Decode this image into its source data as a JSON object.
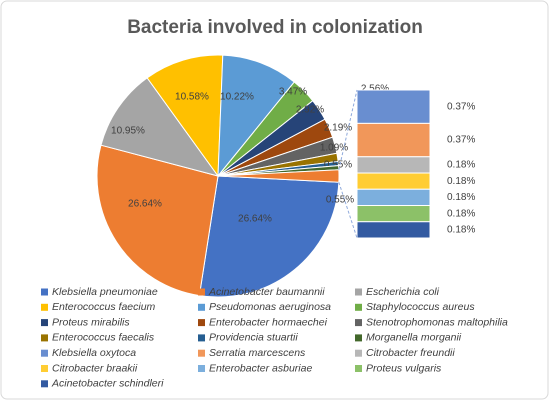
{
  "chart_data": {
    "type": "pie-of-bar",
    "title": "Bacteria involved in colonization",
    "secondary_count": 7,
    "categories": [
      "Klebsiella pneumoniae",
      "Acinetobacter baumannii",
      "Escherichia coli",
      "Enterococcus faecium",
      "Pseudomonas aeruginosa",
      "Staphylococcus aureus",
      "Proteus mirabilis",
      "Enterobacter hormaechei",
      "Stenotrophomonas maltophilia",
      "Enterococcus faecalis",
      "Providencia stuartii",
      "Morganella morganii",
      "Klebsiella oxytoca",
      "Serratia marcescens",
      "Citrobacter freundii",
      "Citrobacter braakii",
      "Enterobacter asburiae",
      "Proteus vulgaris",
      "Acinetobacter schindleri"
    ],
    "values": [
      26.64,
      26.64,
      10.95,
      10.58,
      10.22,
      3.47,
      2.92,
      2.56,
      2.19,
      1.09,
      0.55,
      0.55,
      0.37,
      0.37,
      0.18,
      0.18,
      0.18,
      0.18,
      0.18
    ],
    "value_labels": [
      "26.64%",
      "26.64%",
      "10.95%",
      "10.58%",
      "10.22%",
      "3.47%",
      "2.92%",
      "2.56%",
      "2.19%",
      "1.09%",
      "0.55%",
      "0.55%",
      "0.37%",
      "0.37%",
      "0.18%",
      "0.18%",
      "0.18%",
      "0.18%",
      "0.18%"
    ],
    "colors": [
      "#4472c4",
      "#ed7d31",
      "#a5a5a5",
      "#ffc000",
      "#5b9bd5",
      "#70ad47",
      "#264478",
      "#9e480e",
      "#636363",
      "#997300",
      "#255e91",
      "#43682b",
      "#698ed0",
      "#f1975a",
      "#b7b7b7",
      "#ffcd33",
      "#7cafdd",
      "#8cc168",
      "#335aa1"
    ]
  }
}
